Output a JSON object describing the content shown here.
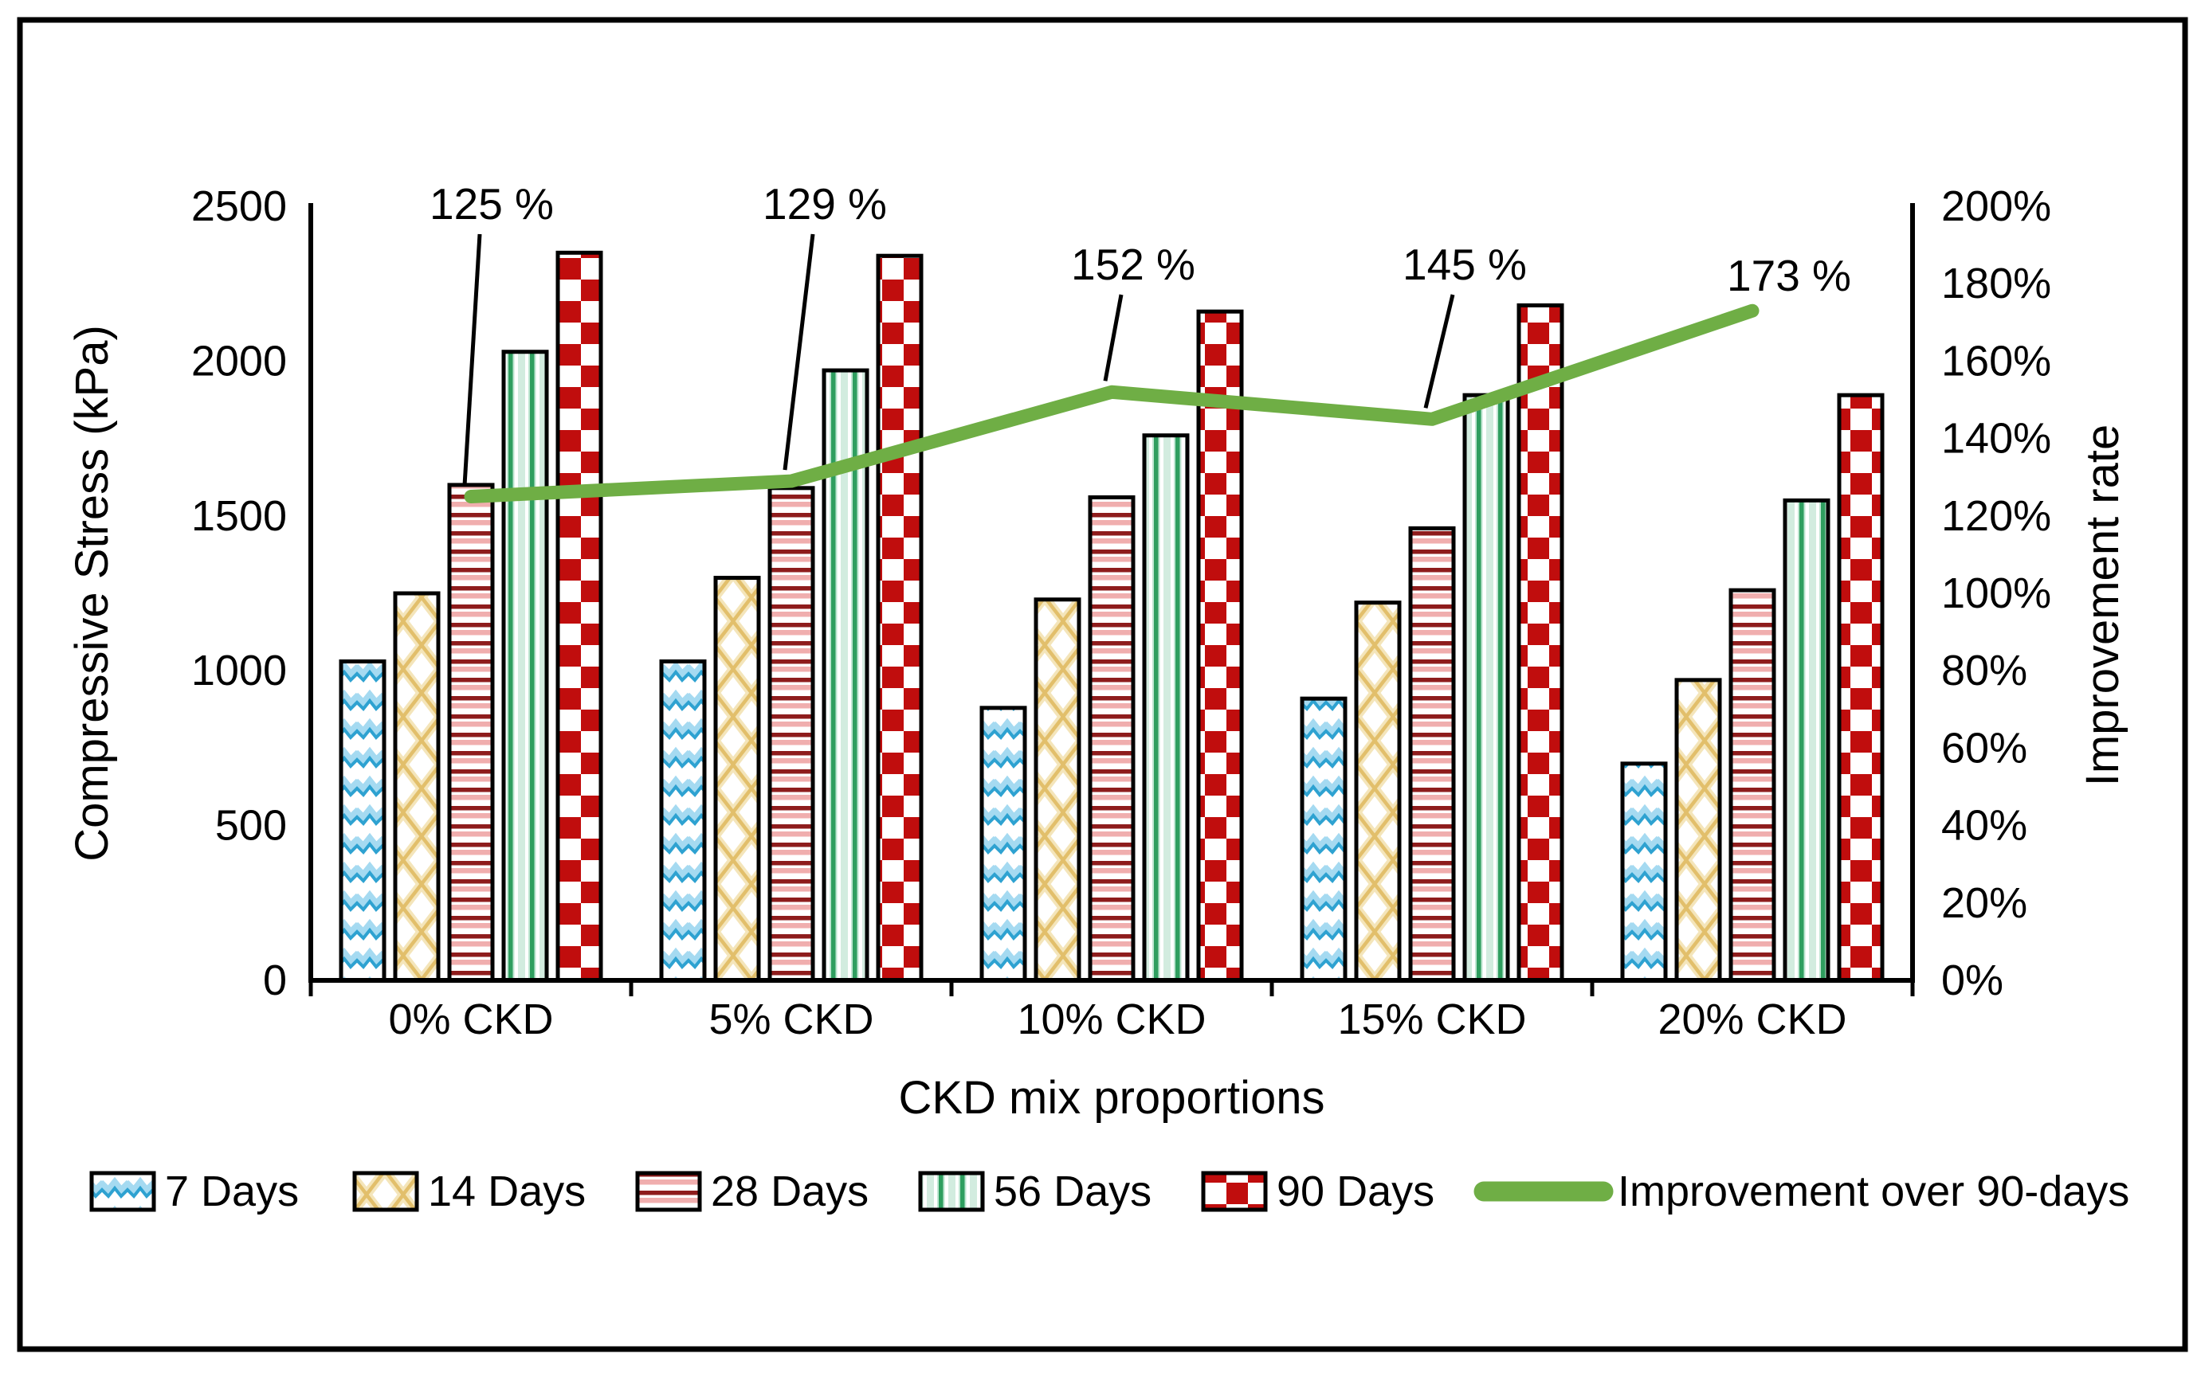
{
  "chart_data": {
    "type": "bar",
    "title": "",
    "xlabel": "CKD mix proportions",
    "ylabel_left": "Compressive Stress (kPa)",
    "ylabel_right": "Improvement rate",
    "categories": [
      "0% CKD",
      "5% CKD",
      "10% CKD",
      "15% CKD",
      "20% CKD"
    ],
    "series": [
      {
        "name": "7 Days",
        "pattern": "wave-blue",
        "values": [
          1030,
          1030,
          880,
          910,
          700
        ],
        "colors": [
          "#a5daf1",
          "#2ea2d1"
        ]
      },
      {
        "name": "14 Days",
        "pattern": "diamond-gold",
        "values": [
          1250,
          1300,
          1230,
          1220,
          970
        ],
        "colors": [
          "#f4e5ba",
          "#e2bf6b"
        ]
      },
      {
        "name": "28 Days",
        "pattern": "hstripe-red",
        "values": [
          1600,
          1590,
          1560,
          1460,
          1260
        ],
        "colors": [
          "#8e1c1c",
          "#f0aeae"
        ]
      },
      {
        "name": "56 Days",
        "pattern": "vstripe-green",
        "values": [
          2030,
          1970,
          1760,
          1890,
          1550
        ],
        "colors": [
          "#2f9e5f",
          "#d2ecdf"
        ]
      },
      {
        "name": "90 Days",
        "pattern": "checker-red",
        "values": [
          2350,
          2340,
          2160,
          2180,
          1890
        ],
        "colors": [
          "#c00d0d"
        ]
      }
    ],
    "line_series": {
      "name": "Improvement over 90-days",
      "color": "#6fae45",
      "values_pct": [
        125,
        129,
        152,
        145,
        173
      ]
    },
    "annotations": [
      "125 %",
      "129 %",
      "152 %",
      "145 %",
      "173 %"
    ],
    "ylim_left": [
      0,
      2500
    ],
    "ylim_right_pct": [
      0,
      200
    ],
    "left_ticks": [
      "0",
      "500",
      "1000",
      "1500",
      "2000",
      "2500"
    ],
    "right_ticks": [
      "0%",
      "20%",
      "40%",
      "60%",
      "80%",
      "100%",
      "120%",
      "140%",
      "160%",
      "180%",
      "200%"
    ],
    "grid": false,
    "legend_position": "bottom",
    "bar_border_color": "#000000",
    "axis_color": "#000000"
  }
}
